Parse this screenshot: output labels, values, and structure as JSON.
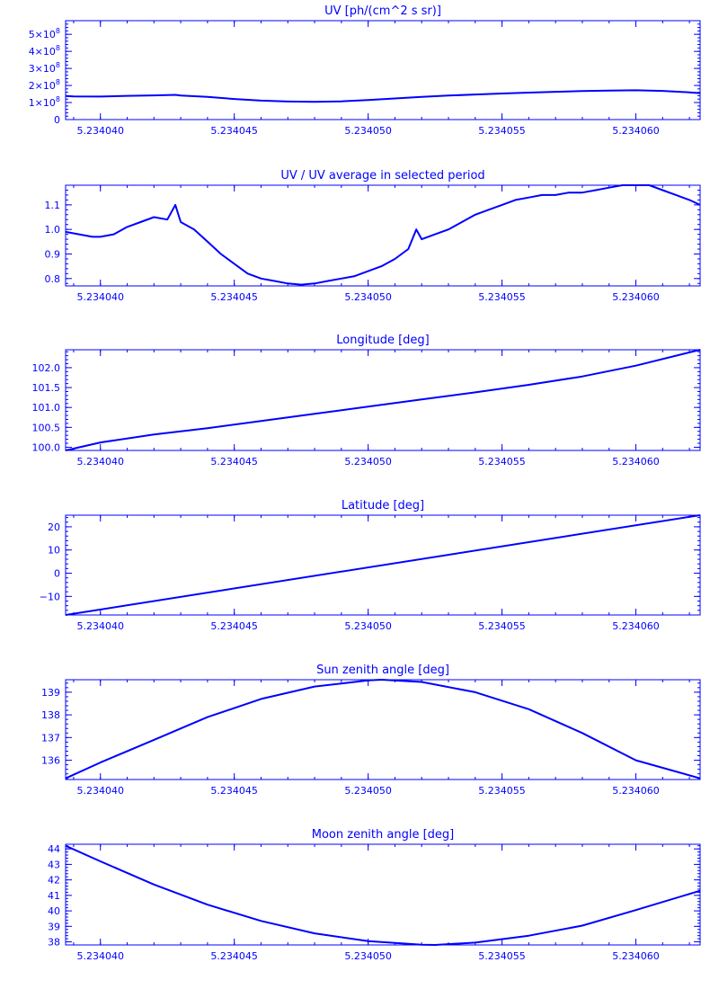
{
  "colors": {
    "accent": "#0000ff",
    "background": "#ffffff"
  },
  "chart_data": [
    {
      "type": "line",
      "title": "UV [ph/(cm^2 s sr)]",
      "xlabel": "",
      "ylabel": "",
      "xlim": [
        5.2340387,
        5.2340624
      ],
      "ylim": [
        0,
        580000000
      ],
      "xticks": [
        5.23404,
        5.234045,
        5.23405,
        5.234055,
        5.23406
      ],
      "xtick_labels": [
        "5.234040",
        "5.234045",
        "5.234050",
        "5.234055",
        "5.234060"
      ],
      "yticks": [
        0,
        100000000,
        200000000,
        300000000,
        400000000,
        500000000
      ],
      "ytick_labels": [
        {
          "base": "0",
          "exp": ""
        },
        {
          "base": "1×10",
          "exp": "8"
        },
        {
          "base": "2×10",
          "exp": "8"
        },
        {
          "base": "3×10",
          "exp": "8"
        },
        {
          "base": "4×10",
          "exp": "8"
        },
        {
          "base": "5×10",
          "exp": "8"
        }
      ],
      "series": [
        {
          "x": [
            5.2340387,
            5.234039,
            5.23404,
            5.234041,
            5.234042,
            5.2340428,
            5.234043,
            5.234044,
            5.234045,
            5.234046,
            5.234047,
            5.234048,
            5.234049,
            5.23405,
            5.234051,
            5.234052,
            5.234053,
            5.234054,
            5.234055,
            5.234056,
            5.234057,
            5.234058,
            5.234059,
            5.23406,
            5.234061,
            5.234062,
            5.2340624
          ],
          "y": [
            138000000,
            136000000,
            135000000,
            139000000,
            142000000,
            145000000,
            141000000,
            133000000,
            121000000,
            111000000,
            106000000,
            104000000,
            107000000,
            115000000,
            124000000,
            133000000,
            141000000,
            147000000,
            153000000,
            158000000,
            163000000,
            167000000,
            170000000,
            172000000,
            168000000,
            160000000,
            155000000
          ]
        }
      ]
    },
    {
      "type": "line",
      "title": "UV / UV average in selected period",
      "xlabel": "",
      "ylabel": "",
      "xlim": [
        5.2340387,
        5.2340624
      ],
      "ylim": [
        0.77,
        1.18
      ],
      "xticks": [
        5.23404,
        5.234045,
        5.23405,
        5.234055,
        5.23406
      ],
      "xtick_labels": [
        "5.234040",
        "5.234045",
        "5.234050",
        "5.234055",
        "5.234060"
      ],
      "yticks": [
        0.8,
        0.9,
        1.0,
        1.1
      ],
      "ytick_labels": [
        {
          "base": "0.8",
          "exp": ""
        },
        {
          "base": "0.9",
          "exp": ""
        },
        {
          "base": "1.0",
          "exp": ""
        },
        {
          "base": "1.1",
          "exp": ""
        }
      ],
      "series": [
        {
          "x": [
            5.2340387,
            5.2340392,
            5.2340397,
            5.23404,
            5.2340405,
            5.234041,
            5.2340415,
            5.234042,
            5.2340425,
            5.2340428,
            5.234043,
            5.2340435,
            5.234044,
            5.2340445,
            5.234045,
            5.2340455,
            5.234046,
            5.2340465,
            5.234047,
            5.2340475,
            5.234048,
            5.2340485,
            5.234049,
            5.2340495,
            5.23405,
            5.2340505,
            5.234051,
            5.2340515,
            5.2340518,
            5.234052,
            5.2340525,
            5.234053,
            5.2340535,
            5.234054,
            5.2340545,
            5.234055,
            5.2340555,
            5.234056,
            5.2340565,
            5.234057,
            5.2340575,
            5.234058,
            5.2340585,
            5.234059,
            5.2340595,
            5.23406,
            5.2340605,
            5.234061,
            5.2340615,
            5.234062,
            5.2340624
          ],
          "y": [
            0.99,
            0.98,
            0.97,
            0.97,
            0.98,
            1.01,
            1.03,
            1.05,
            1.04,
            1.1,
            1.03,
            1.0,
            0.95,
            0.9,
            0.86,
            0.82,
            0.8,
            0.79,
            0.78,
            0.775,
            0.78,
            0.79,
            0.8,
            0.81,
            0.83,
            0.85,
            0.88,
            0.92,
            1.0,
            0.96,
            0.98,
            1.0,
            1.03,
            1.06,
            1.08,
            1.1,
            1.12,
            1.13,
            1.14,
            1.14,
            1.15,
            1.15,
            1.16,
            1.17,
            1.18,
            1.18,
            1.18,
            1.16,
            1.14,
            1.12,
            1.1
          ]
        }
      ]
    },
    {
      "type": "line",
      "title": "Longitude [deg]",
      "xlabel": "",
      "ylabel": "",
      "xlim": [
        5.2340387,
        5.2340624
      ],
      "ylim": [
        99.92,
        102.45
      ],
      "xticks": [
        5.23404,
        5.234045,
        5.23405,
        5.234055,
        5.23406
      ],
      "xtick_labels": [
        "5.234040",
        "5.234045",
        "5.234050",
        "5.234055",
        "5.234060"
      ],
      "yticks": [
        100.0,
        100.5,
        101.0,
        101.5,
        102.0
      ],
      "ytick_labels": [
        {
          "base": "100.0",
          "exp": ""
        },
        {
          "base": "100.5",
          "exp": ""
        },
        {
          "base": "101.0",
          "exp": ""
        },
        {
          "base": "101.5",
          "exp": ""
        },
        {
          "base": "102.0",
          "exp": ""
        }
      ],
      "series": [
        {
          "x": [
            5.2340387,
            5.23404,
            5.234042,
            5.234044,
            5.234046,
            5.234048,
            5.23405,
            5.234052,
            5.234054,
            5.234056,
            5.234058,
            5.23406,
            5.2340624
          ],
          "y": [
            99.92,
            100.12,
            100.32,
            100.48,
            100.66,
            100.84,
            101.02,
            101.2,
            101.38,
            101.57,
            101.78,
            102.05,
            102.45
          ]
        }
      ]
    },
    {
      "type": "line",
      "title": "Latitude [deg]",
      "xlabel": "",
      "ylabel": "",
      "xlim": [
        5.2340387,
        5.2340624
      ],
      "ylim": [
        -18,
        25
      ],
      "xticks": [
        5.23404,
        5.234045,
        5.23405,
        5.234055,
        5.23406
      ],
      "xtick_labels": [
        "5.234040",
        "5.234045",
        "5.234050",
        "5.234055",
        "5.234060"
      ],
      "yticks": [
        -10,
        0,
        10,
        20
      ],
      "ytick_labels": [
        {
          "base": "−10",
          "exp": ""
        },
        {
          "base": "0",
          "exp": ""
        },
        {
          "base": "10",
          "exp": ""
        },
        {
          "base": "20",
          "exp": ""
        }
      ],
      "series": [
        {
          "x": [
            5.2340387,
            5.2340624
          ],
          "y": [
            -18,
            25
          ]
        }
      ]
    },
    {
      "type": "line",
      "title": "Sun zenith angle [deg]",
      "xlabel": "",
      "ylabel": "",
      "xlim": [
        5.2340387,
        5.2340624
      ],
      "ylim": [
        135.15,
        139.55
      ],
      "xticks": [
        5.23404,
        5.234045,
        5.23405,
        5.234055,
        5.23406
      ],
      "xtick_labels": [
        "5.234040",
        "5.234045",
        "5.234050",
        "5.234055",
        "5.234060"
      ],
      "yticks": [
        136,
        137,
        138,
        139
      ],
      "ytick_labels": [
        {
          "base": "136",
          "exp": ""
        },
        {
          "base": "137",
          "exp": ""
        },
        {
          "base": "138",
          "exp": ""
        },
        {
          "base": "139",
          "exp": ""
        }
      ],
      "series": [
        {
          "x": [
            5.2340387,
            5.23404,
            5.234042,
            5.234044,
            5.234046,
            5.234048,
            5.23405,
            5.2340505,
            5.234052,
            5.234054,
            5.234056,
            5.234058,
            5.23406,
            5.2340624
          ],
          "y": [
            135.2,
            135.9,
            136.9,
            137.9,
            138.7,
            139.25,
            139.52,
            139.55,
            139.45,
            139.0,
            138.25,
            137.2,
            136.0,
            135.2
          ]
        }
      ]
    },
    {
      "type": "line",
      "title": "Moon zenith angle [deg]",
      "xlabel": "",
      "ylabel": "",
      "xlim": [
        5.2340387,
        5.2340624
      ],
      "ylim": [
        37.8,
        44.3
      ],
      "xticks": [
        5.23404,
        5.234045,
        5.23405,
        5.234055,
        5.23406
      ],
      "xtick_labels": [
        "5.234040",
        "5.234045",
        "5.234050",
        "5.234055",
        "5.234060"
      ],
      "yticks": [
        38,
        39,
        40,
        41,
        42,
        43,
        44
      ],
      "ytick_labels": [
        {
          "base": "38",
          "exp": ""
        },
        {
          "base": "39",
          "exp": ""
        },
        {
          "base": "40",
          "exp": ""
        },
        {
          "base": "41",
          "exp": ""
        },
        {
          "base": "42",
          "exp": ""
        },
        {
          "base": "43",
          "exp": ""
        },
        {
          "base": "44",
          "exp": ""
        }
      ],
      "series": [
        {
          "x": [
            5.2340387,
            5.23404,
            5.234042,
            5.234044,
            5.234046,
            5.234048,
            5.23405,
            5.234052,
            5.2340525,
            5.234054,
            5.234056,
            5.234058,
            5.23406,
            5.2340624
          ],
          "y": [
            44.2,
            43.2,
            41.7,
            40.4,
            39.35,
            38.55,
            38.05,
            37.82,
            37.8,
            37.95,
            38.4,
            39.05,
            40.05,
            41.3
          ]
        }
      ]
    }
  ]
}
